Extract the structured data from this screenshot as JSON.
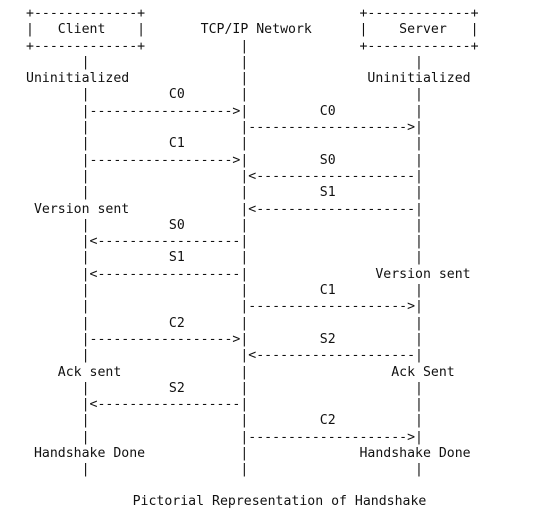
{
  "diagram": {
    "lines": [
      "+-------------+                           +-------------+",
      "|   Client    |       TCP/IP Network      |    Server   |",
      "+-------------+            |              +-------------+",
      "       |                   |                     |",
      "Uninitialized              |               Uninitialized",
      "       |          C0       |                     |",
      "       |------------------>|         C0          |",
      "       |                   |-------------------->|",
      "       |          C1       |                     |",
      "       |------------------>|         S0          |",
      "       |                   |<--------------------|",
      "       |                   |         S1          |",
      " Version sent              |<--------------------|",
      "       |          S0       |                     |",
      "       |<------------------|                     |",
      "       |          S1       |                     |",
      "       |<------------------|                Version sent",
      "       |                   |         C1          |",
      "       |                   |-------------------->|",
      "       |          C2       |                     |",
      "       |------------------>|         S2          |",
      "       |                   |<--------------------|",
      "    Ack sent               |                  Ack Sent",
      "       |          S2       |                     |",
      "       |<------------------|                     |",
      "       |                   |         C2          |",
      "       |                   |-------------------->|",
      " Handshake Done            |              Handshake Done",
      "       |                   |                     |"
    ],
    "caption": "Pictorial Representation of Handshake"
  }
}
